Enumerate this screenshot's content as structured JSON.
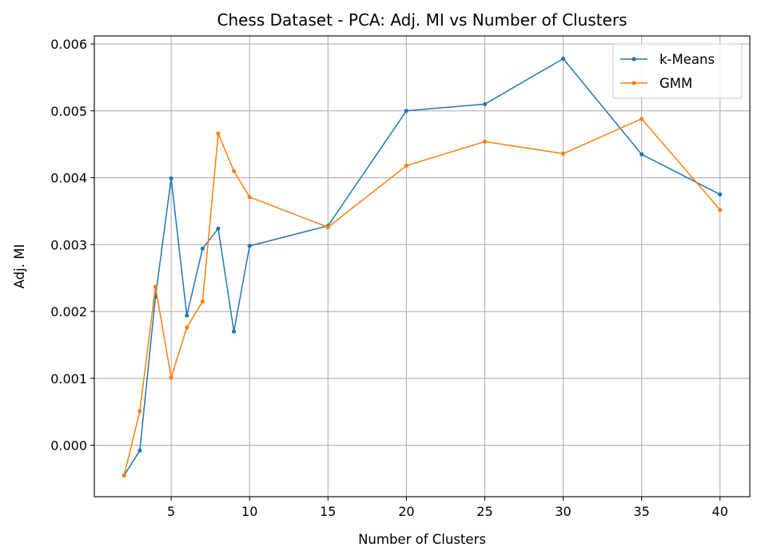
{
  "chart_data": {
    "type": "line",
    "title": "Chess Dataset - PCA: Adj. MI vs Number of Clusters",
    "xlabel": "Number of Clusters",
    "ylabel": "Adj. MI",
    "xlim": [
      0.1,
      41.9
    ],
    "ylim": [
      -0.00077,
      0.00612
    ],
    "xticks": [
      5,
      10,
      15,
      20,
      25,
      30,
      35,
      40
    ],
    "xtick_labels": [
      "5",
      "10",
      "15",
      "20",
      "25",
      "30",
      "35",
      "40"
    ],
    "yticks": [
      0,
      0.001,
      0.002,
      0.003,
      0.004,
      0.005,
      0.006
    ],
    "ytick_labels": [
      "0.000",
      "0.001",
      "0.002",
      "0.003",
      "0.004",
      "0.005",
      "0.006"
    ],
    "grid": true,
    "legend_position": "top-right",
    "x": [
      2,
      3,
      4,
      5,
      6,
      7,
      8,
      9,
      10,
      15,
      20,
      25,
      30,
      35,
      40
    ],
    "series": [
      {
        "name": "k-Means",
        "color": "#1f77b4",
        "values": [
          -0.00045,
          -8e-05,
          0.00222,
          0.00399,
          0.00194,
          0.00294,
          0.00324,
          0.0017,
          0.00298,
          0.00328,
          0.005,
          0.0051,
          0.00578,
          0.00435,
          0.00375
        ]
      },
      {
        "name": "GMM",
        "color": "#ff7f0e",
        "values": [
          -0.00045,
          0.00051,
          0.00237,
          0.00101,
          0.00176,
          0.00215,
          0.00466,
          0.0041,
          0.00371,
          0.00326,
          0.00418,
          0.00454,
          0.00436,
          0.00488,
          0.00352
        ]
      }
    ]
  }
}
